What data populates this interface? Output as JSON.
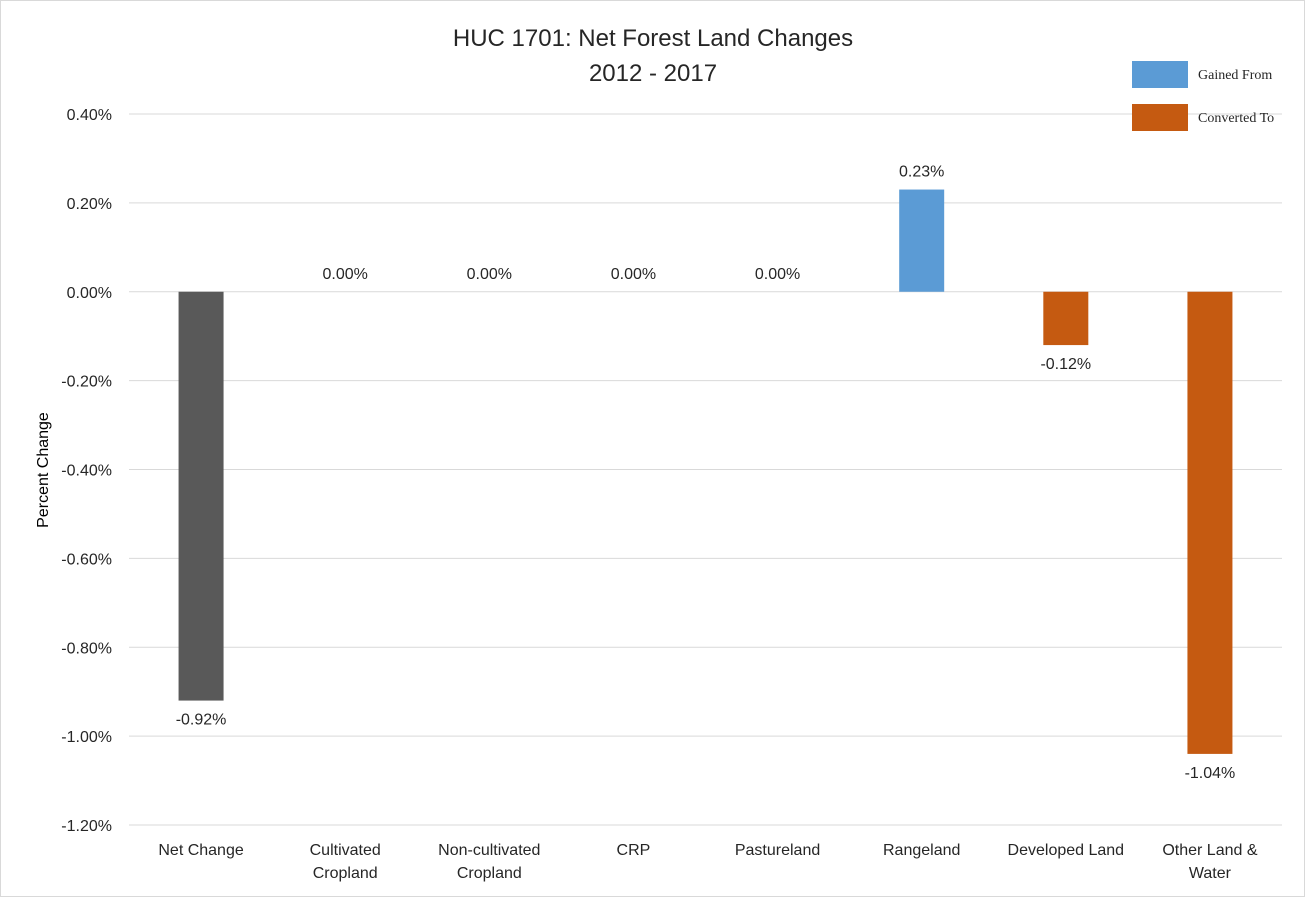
{
  "chart_data": {
    "type": "bar",
    "title": [
      "HUC 1701: Net Forest Land Changes",
      "2012 - 2017"
    ],
    "ylabel": "Percent Change",
    "xlabel": "",
    "ylim": [
      -1.2,
      0.4
    ],
    "yticks": [
      0.4,
      0.2,
      0.0,
      -0.2,
      -0.4,
      -0.6,
      -0.8,
      -1.0,
      -1.2
    ],
    "ytick_labels": [
      "0.40%",
      "0.20%",
      "0.00%",
      "-0.20%",
      "-0.40%",
      "-0.60%",
      "-0.80%",
      "-1.00%",
      "-1.20%"
    ],
    "grid": true,
    "categories": [
      [
        "Net Change"
      ],
      [
        "Cultivated",
        "Cropland"
      ],
      [
        "Non-cultivated",
        "Cropland"
      ],
      [
        "CRP"
      ],
      [
        "Pastureland"
      ],
      [
        "Rangeland"
      ],
      [
        "Developed Land"
      ],
      [
        "Other Land &",
        "Water"
      ]
    ],
    "values": [
      -0.92,
      0.0,
      0.0,
      0.0,
      0.0,
      0.23,
      -0.12,
      -1.04
    ],
    "data_labels": [
      "-0.92%",
      "0.00%",
      "0.00%",
      "0.00%",
      "0.00%",
      "0.23%",
      "-0.12%",
      "-1.04%"
    ],
    "bar_kind": [
      "net",
      "gained",
      "gained",
      "gained",
      "gained",
      "gained",
      "converted",
      "converted"
    ],
    "legend": {
      "placement": "top-right",
      "items": [
        {
          "label": "Gained From",
          "kind": "gained"
        },
        {
          "label": "Converted To",
          "kind": "converted"
        }
      ]
    },
    "colors": {
      "net": "#595959",
      "gained": "#5b9bd5",
      "converted": "#c55a11"
    }
  }
}
